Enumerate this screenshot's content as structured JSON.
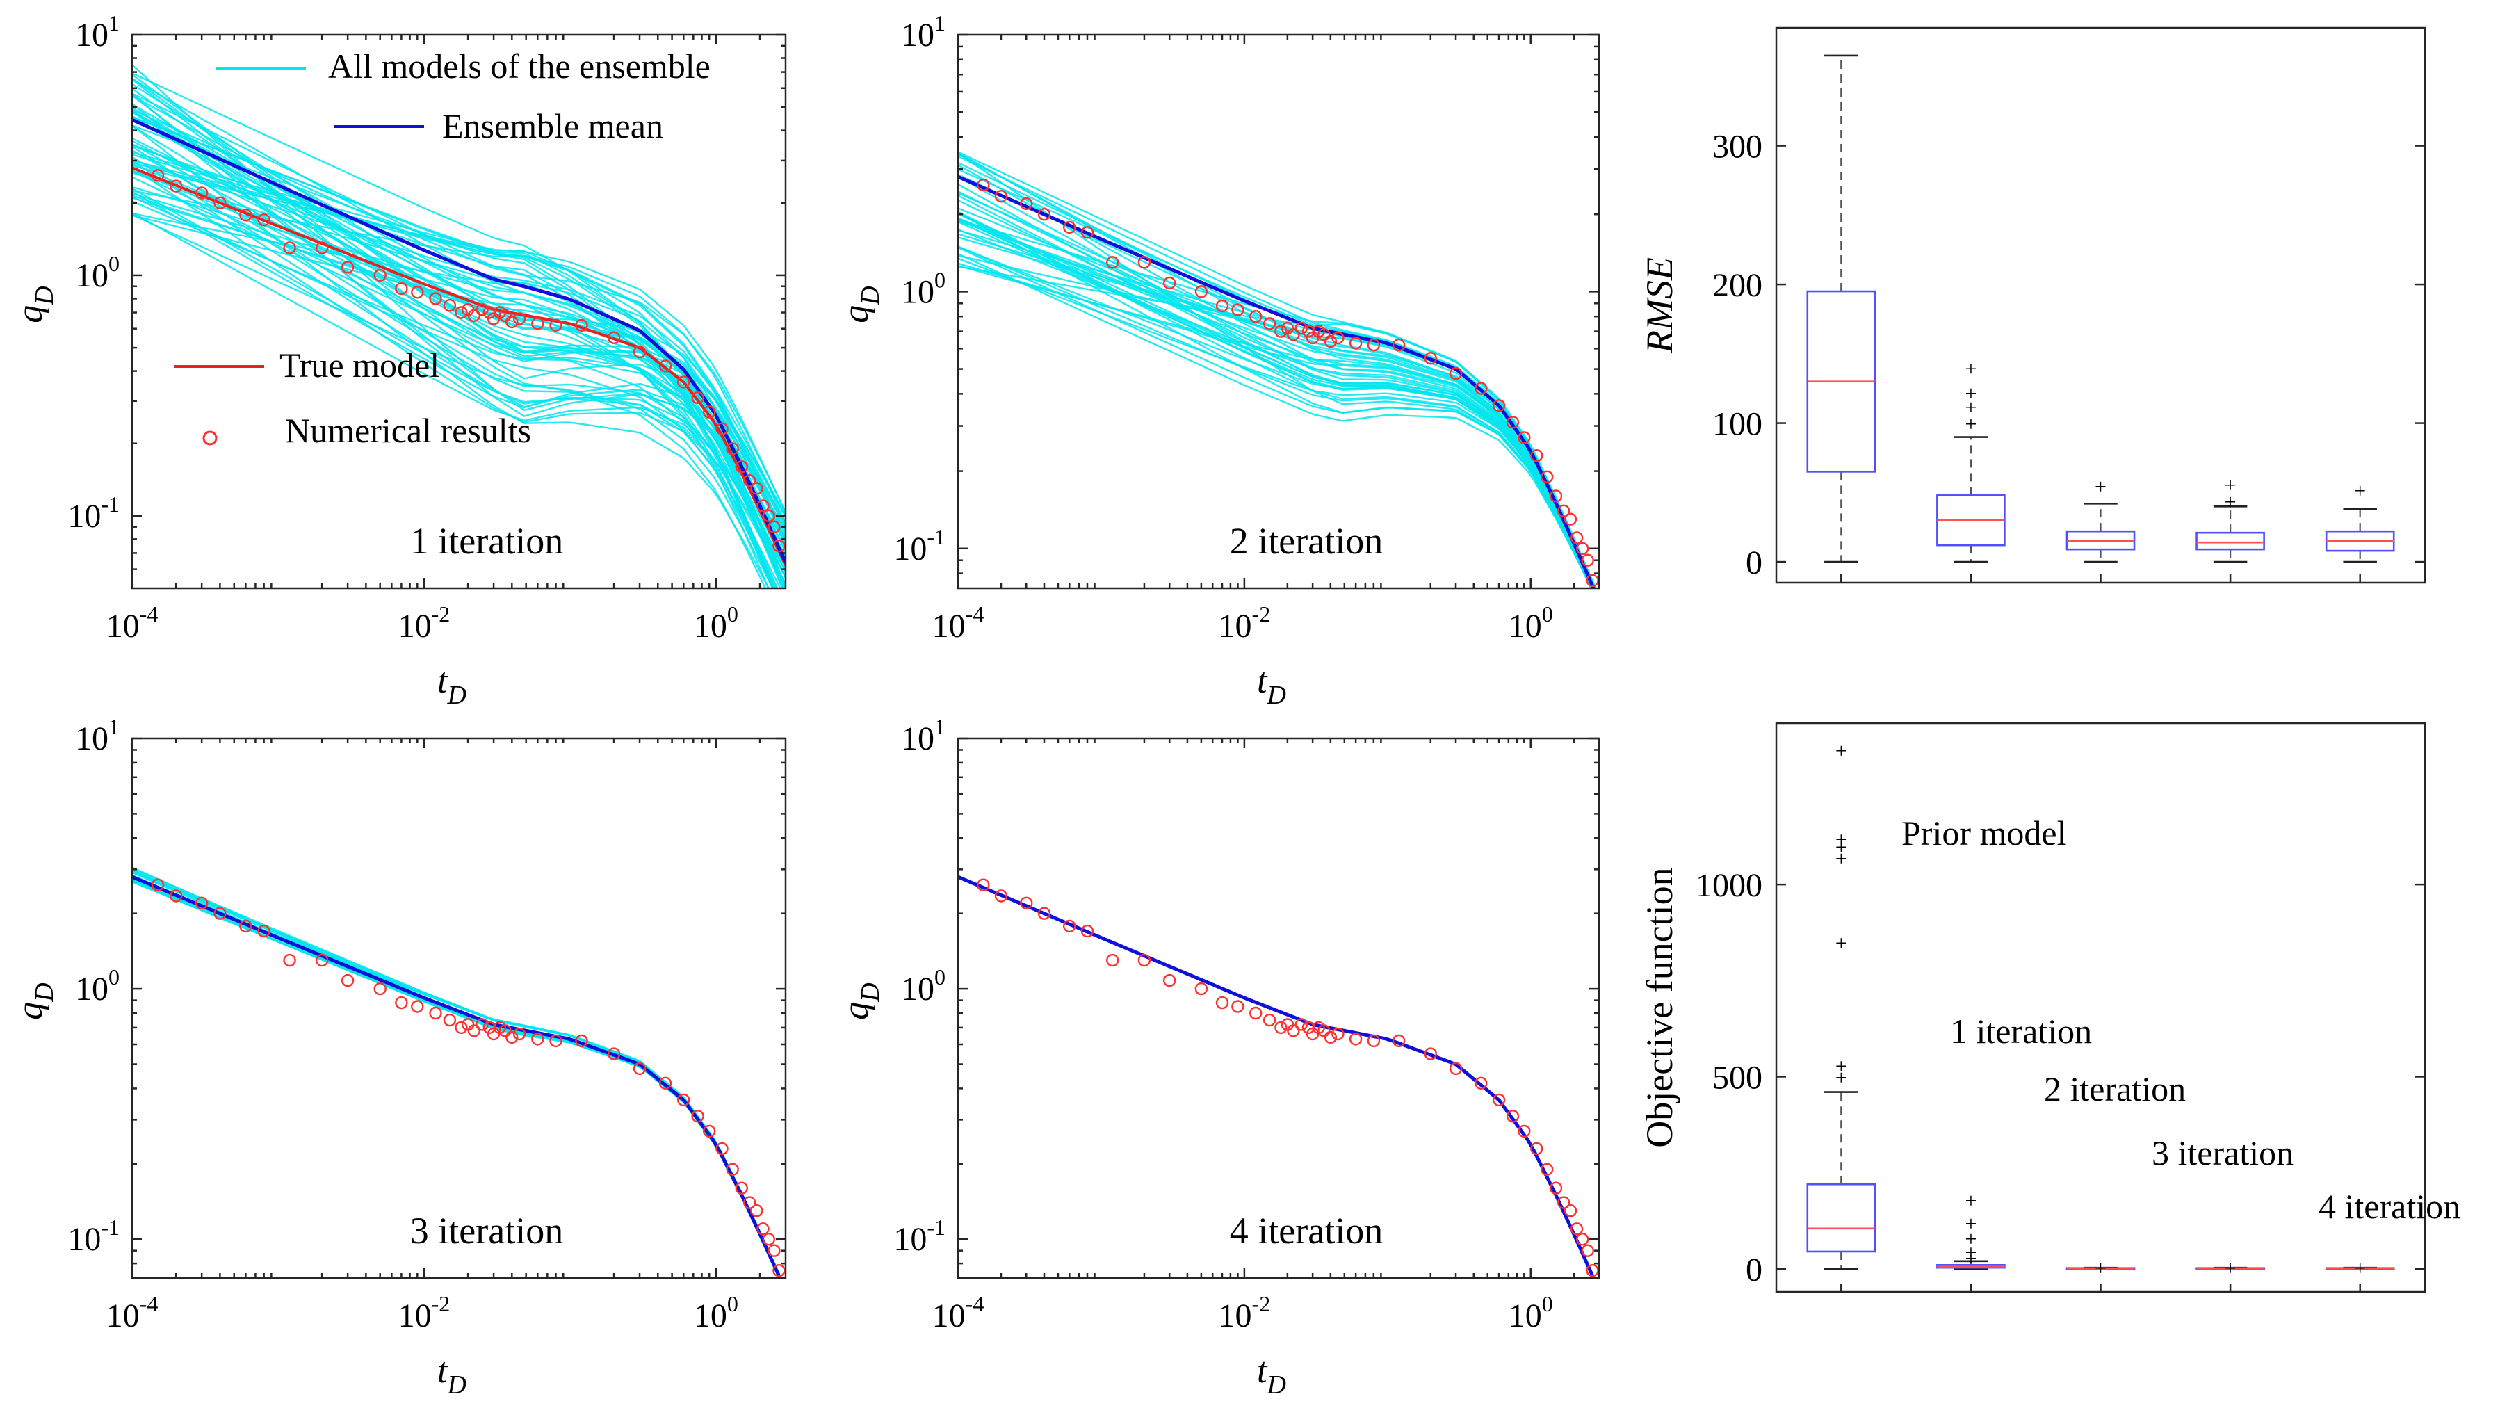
{
  "chart_data": [
    {
      "id": "p1",
      "type": "line",
      "title": "",
      "annotation": "1 iteration",
      "xlabel": "t_D",
      "ylabel": "q_D",
      "xscale": "log",
      "yscale": "log",
      "xlim": [
        0.0001,
        3
      ],
      "ylim": [
        0.05,
        10
      ],
      "xticks": [
        {
          "base": "10",
          "exp": "-4",
          "value": 0.0001
        },
        {
          "base": "10",
          "exp": "-2",
          "value": 0.01
        },
        {
          "base": "10",
          "exp": "0",
          "value": 1
        }
      ],
      "yticks": [
        {
          "base": "10",
          "exp": "-1",
          "value": 0.1
        },
        {
          "base": "10",
          "exp": "0",
          "value": 1
        },
        {
          "base": "10",
          "exp": "1",
          "value": 10
        }
      ],
      "ensemble": {
        "count": 60,
        "spread_start": [
          -0.2,
          0.45
        ],
        "spread_mid": [
          -0.45,
          0.3
        ],
        "spread_end": [
          -0.28,
          0.22
        ],
        "tail_pivot": 0.65
      },
      "mean_offset": [
        0.2,
        0.12,
        0.01
      ],
      "legend": [
        {
          "label": "All models of the ensemble",
          "color": "#00e5ee"
        },
        {
          "label": "Ensemble mean",
          "color": "#1010d8"
        },
        {
          "label": "True model",
          "color": "#e82020"
        },
        {
          "label": "Numerical results",
          "color": "#ff3030",
          "marker": "circle"
        }
      ]
    },
    {
      "id": "p2",
      "type": "line",
      "title": "",
      "annotation": "2 iteration",
      "xlabel": "t_D",
      "ylabel": "q_D",
      "xscale": "log",
      "yscale": "log",
      "xlim": [
        0.0001,
        3
      ],
      "ylim": [
        0.07,
        10
      ],
      "xticks": [
        {
          "base": "10",
          "exp": "-4",
          "value": 0.0001
        },
        {
          "base": "10",
          "exp": "-2",
          "value": 0.01
        },
        {
          "base": "10",
          "exp": "0",
          "value": 1
        }
      ],
      "yticks": [
        {
          "base": "10",
          "exp": "-1",
          "value": 0.1
        },
        {
          "base": "10",
          "exp": "0",
          "value": 1
        },
        {
          "base": "10",
          "exp": "1",
          "value": 10
        }
      ],
      "ensemble": {
        "count": 40,
        "spread_start": [
          -0.35,
          0.1
        ],
        "spread_mid": [
          -0.35,
          0.05
        ],
        "spread_end": [
          -0.02,
          0.02
        ],
        "tail_pivot": 0.9
      },
      "mean_offset": [
        0,
        0,
        0
      ]
    },
    {
      "id": "p3",
      "type": "line",
      "title": "",
      "annotation": "3 iteration",
      "xlabel": "t_D",
      "ylabel": "q_D",
      "xscale": "log",
      "yscale": "log",
      "xlim": [
        0.0001,
        3
      ],
      "ylim": [
        0.07,
        10
      ],
      "xticks": [
        {
          "base": "10",
          "exp": "-4",
          "value": 0.0001
        },
        {
          "base": "10",
          "exp": "-2",
          "value": 0.01
        },
        {
          "base": "10",
          "exp": "0",
          "value": 1
        }
      ],
      "yticks": [
        {
          "base": "10",
          "exp": "-1",
          "value": 0.1
        },
        {
          "base": "10",
          "exp": "0",
          "value": 1
        },
        {
          "base": "10",
          "exp": "1",
          "value": 10
        }
      ],
      "ensemble": {
        "count": 20,
        "spread_start": [
          -0.02,
          0.04
        ],
        "spread_mid": [
          -0.02,
          0.02
        ],
        "spread_end": [
          -0.01,
          0.01
        ],
        "tail_pivot": 0.9
      },
      "mean_offset": [
        0,
        0,
        0
      ]
    },
    {
      "id": "p4",
      "type": "line",
      "title": "",
      "annotation": "4 iteration",
      "xlabel": "t_D",
      "ylabel": "q_D",
      "xscale": "log",
      "yscale": "log",
      "xlim": [
        0.0001,
        3
      ],
      "ylim": [
        0.07,
        10
      ],
      "xticks": [
        {
          "base": "10",
          "exp": "-4",
          "value": 0.0001
        },
        {
          "base": "10",
          "exp": "-2",
          "value": 0.01
        },
        {
          "base": "10",
          "exp": "0",
          "value": 1
        }
      ],
      "yticks": [
        {
          "base": "10",
          "exp": "-1",
          "value": 0.1
        },
        {
          "base": "10",
          "exp": "0",
          "value": 1
        },
        {
          "base": "10",
          "exp": "1",
          "value": 10
        }
      ],
      "ensemble": {
        "count": 0
      },
      "mean_offset": [
        0,
        0,
        0
      ]
    },
    {
      "id": "rmse",
      "type": "box",
      "title": "",
      "ylabel": "RMSE",
      "ylim": [
        -15,
        385
      ],
      "yticks": [
        0,
        100,
        200,
        300
      ],
      "boxes": [
        {
          "min": 0,
          "q1": 65,
          "median": 130,
          "q3": 195,
          "max": 365,
          "outliers": []
        },
        {
          "min": 0,
          "q1": 12,
          "median": 30,
          "q3": 48,
          "max": 90,
          "outliers": [
            100,
            112,
            122,
            140
          ]
        },
        {
          "min": 0,
          "q1": 9,
          "median": 15,
          "q3": 22,
          "max": 42,
          "outliers": [
            55
          ]
        },
        {
          "min": 0,
          "q1": 9,
          "median": 14,
          "q3": 21,
          "max": 40,
          "outliers": [
            44,
            56
          ]
        },
        {
          "min": 0,
          "q1": 8,
          "median": 15,
          "q3": 22,
          "max": 38,
          "outliers": [
            52
          ]
        }
      ]
    },
    {
      "id": "objective",
      "type": "box",
      "title": "",
      "ylabel": "Objective function",
      "ylim": [
        -60,
        1420
      ],
      "yticks": [
        0,
        500,
        1000
      ],
      "boxes": [
        {
          "min": 0,
          "q1": 45,
          "median": 105,
          "q3": 220,
          "max": 460,
          "outliers": [
            500,
            530,
            850,
            1070,
            1100,
            1120,
            1350
          ]
        },
        {
          "min": 0,
          "q1": 3,
          "median": 6,
          "q3": 10,
          "max": 20,
          "outliers": [
            30,
            45,
            80,
            120,
            180
          ]
        },
        {
          "min": 0,
          "q1": 0,
          "median": 1,
          "q3": 2,
          "max": 3,
          "outliers": [
            4
          ]
        },
        {
          "min": 0,
          "q1": 0,
          "median": 1,
          "q3": 2,
          "max": 3,
          "outliers": [
            4
          ]
        },
        {
          "min": 0,
          "q1": 0,
          "median": 1,
          "q3": 2,
          "max": 3,
          "outliers": [
            4
          ]
        }
      ],
      "annotations": [
        "Prior model",
        "1 iteration",
        "2 iteration",
        "3 iteration",
        "4 iteration"
      ]
    }
  ],
  "true_model": {
    "t": [
      0.0001,
      0.001,
      0.01,
      0.03,
      0.1,
      0.3,
      0.6,
      1,
      1.5,
      2,
      2.6
    ],
    "q": [
      2.8,
      1.6,
      0.92,
      0.72,
      0.63,
      0.5,
      0.36,
      0.24,
      0.15,
      0.105,
      0.075
    ]
  },
  "numerical_results": {
    "t": [
      0.00015,
      0.0002,
      0.0003,
      0.0004,
      0.0006,
      0.0008,
      0.0012,
      0.002,
      0.003,
      0.005,
      0.007,
      0.009,
      0.012,
      0.015,
      0.018,
      0.02,
      0.022,
      0.025,
      0.028,
      0.03,
      0.033,
      0.036,
      0.04,
      0.045,
      0.06,
      0.08,
      0.12,
      0.2,
      0.3,
      0.45,
      0.6,
      0.75,
      0.9,
      1.1,
      1.3,
      1.5,
      1.7,
      1.9,
      2.1,
      2.3,
      2.5,
      2.7
    ],
    "q": [
      2.6,
      2.35,
      2.2,
      2.0,
      1.78,
      1.7,
      1.3,
      1.3,
      1.08,
      1.0,
      0.88,
      0.85,
      0.8,
      0.75,
      0.7,
      0.72,
      0.68,
      0.72,
      0.7,
      0.66,
      0.7,
      0.68,
      0.64,
      0.66,
      0.63,
      0.62,
      0.62,
      0.55,
      0.48,
      0.42,
      0.36,
      0.31,
      0.27,
      0.23,
      0.19,
      0.16,
      0.14,
      0.13,
      0.11,
      0.1,
      0.09,
      0.075
    ]
  }
}
